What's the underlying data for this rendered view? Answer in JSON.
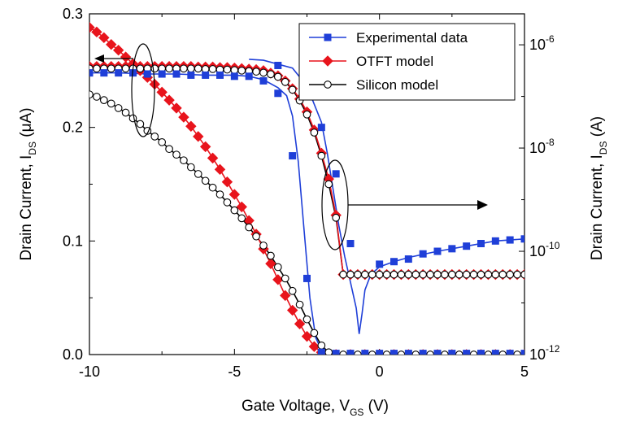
{
  "chart_data": {
    "type": "line",
    "xlabel": {
      "main": "Gate Voltage, V",
      "sub": "GS",
      "unit": "  (V)"
    },
    "ylabel_left": {
      "main": "Drain Current,  I",
      "sub": "DS",
      "unit": "   (μA)"
    },
    "ylabel_right": {
      "main": "Drain Current,  I",
      "sub": "DS",
      "unit": "   (A)"
    },
    "xlim": [
      -10,
      5
    ],
    "ylim_left": [
      0,
      0.3
    ],
    "ylim_right_log10": [
      -12,
      -5.4
    ],
    "x_ticks": [
      {
        "v": -10,
        "label": "-10"
      },
      {
        "v": -5,
        "label": "-5"
      },
      {
        "v": 0,
        "label": "0"
      },
      {
        "v": 5,
        "label": "5"
      }
    ],
    "y_left_ticks": [
      {
        "v": 0.0,
        "label": "0.0"
      },
      {
        "v": 0.1,
        "label": "0.1"
      },
      {
        "v": 0.2,
        "label": "0.2"
      },
      {
        "v": 0.3,
        "label": "0.3"
      }
    ],
    "y_right_ticks": [
      {
        "exp": -12,
        "base": "10",
        "sup": "-12"
      },
      {
        "exp": -10,
        "base": "10",
        "sup": "-10"
      },
      {
        "exp": -8,
        "base": "10",
        "sup": "-8"
      },
      {
        "exp": -6,
        "base": "10",
        "sup": "-6"
      }
    ],
    "legend_position": "top-right",
    "series": [
      {
        "name": "Experimental data",
        "color": "#1f3fd8",
        "marker": "square",
        "linear": {
          "line_x": [
            -10,
            -9,
            -8,
            -7,
            -6,
            -5,
            -4.5,
            -4,
            -3.5,
            -3.2,
            -3.0,
            -2.8,
            -2.6,
            -2.4,
            -2.2,
            -2.0,
            -1.8,
            -1.6,
            0,
            2,
            5
          ],
          "line_y": [
            0.248,
            0.248,
            0.247,
            0.247,
            0.246,
            0.246,
            0.245,
            0.242,
            0.235,
            0.228,
            0.21,
            0.17,
            0.11,
            0.05,
            0.015,
            0.004,
            0.002,
            0.001,
            0.001,
            0.001,
            0.001
          ],
          "marker_x": [
            -10,
            -9.5,
            -9,
            -8.5,
            -8,
            -7.5,
            -7,
            -6.5,
            -6,
            -5.5,
            -5,
            -4.5,
            -4,
            -3.5,
            -3,
            -2.5,
            -2,
            -1.5,
            -1,
            -0.5,
            0,
            0.5,
            1,
            1.5,
            2,
            2.5,
            3,
            3.5,
            4,
            4.5,
            5
          ],
          "marker_y": [
            0.248,
            0.248,
            0.248,
            0.248,
            0.247,
            0.247,
            0.247,
            0.246,
            0.246,
            0.246,
            0.245,
            0.245,
            0.241,
            0.23,
            0.175,
            0.067,
            0.002,
            0.001,
            0.001,
            0.001,
            0.001,
            0.001,
            0.001,
            0.001,
            0.001,
            0.001,
            0.001,
            0.001,
            0.001,
            0.001,
            0.001
          ]
        },
        "log": {
          "line_x": [
            -4.5,
            -4,
            -3,
            -2.5,
            -2,
            -1.8,
            -1.6,
            -1.4,
            -1.2,
            -1,
            -0.8,
            -0.7,
            -0.6,
            -0.5,
            -0.3,
            0,
            0.5,
            1,
            2,
            3,
            4,
            5
          ],
          "line_y": [
            -6.28,
            -6.3,
            -6.45,
            -6.8,
            -7.5,
            -8.1,
            -8.8,
            -9.5,
            -10.1,
            -10.6,
            -11.1,
            -11.6,
            -11.2,
            -10.75,
            -10.45,
            -10.3,
            -10.2,
            -10.12,
            -10.0,
            -9.9,
            -9.8,
            -9.76
          ],
          "marker_x": [
            -3.5,
            -2.5,
            -2,
            -1.5,
            -1,
            0,
            0.5,
            1,
            1.5,
            2,
            2.5,
            3,
            3.5,
            4,
            4.5,
            5
          ],
          "marker_y": [
            -6.4,
            -6.9,
            -7.6,
            -8.5,
            -9.85,
            -10.25,
            -10.2,
            -10.15,
            -10.05,
            -10.0,
            -9.95,
            -9.9,
            -9.85,
            -9.8,
            -9.78,
            -9.76
          ]
        }
      },
      {
        "name": "OTFT model",
        "color": "#e8141c",
        "marker": "diamond",
        "linear": {
          "x": [
            -10,
            -9.75,
            -9.5,
            -9.25,
            -9,
            -8.75,
            -8.5,
            -8.25,
            -8,
            -7.75,
            -7.5,
            -7.25,
            -7,
            -6.75,
            -6.5,
            -6.25,
            -6,
            -5.75,
            -5.5,
            -5.25,
            -5,
            -4.75,
            -4.5,
            -4.25,
            -4,
            -3.75,
            -3.5,
            -3.25,
            -3,
            -2.75,
            -2.5,
            -2.25,
            -2,
            -1.75,
            -1.5,
            -1,
            -0.5,
            0,
            0.5,
            1,
            1.5,
            2,
            2.5,
            3,
            3.5,
            4,
            4.5,
            5
          ],
          "y": [
            0.288,
            0.284,
            0.279,
            0.273,
            0.268,
            0.262,
            0.256,
            0.25,
            0.244,
            0.238,
            0.231,
            0.224,
            0.217,
            0.209,
            0.201,
            0.192,
            0.183,
            0.173,
            0.163,
            0.152,
            0.141,
            0.13,
            0.118,
            0.106,
            0.093,
            0.08,
            0.066,
            0.052,
            0.039,
            0.027,
            0.016,
            0.007,
            0.002,
            0.0,
            0.0,
            0.0,
            0.0,
            0.0,
            0.0,
            0.0,
            0.0,
            0.0,
            0.0,
            0.0,
            0.0,
            0.0,
            0.0,
            0.0
          ]
        },
        "log": {
          "x": [
            -10,
            -9.75,
            -9.5,
            -9.25,
            -9,
            -8.75,
            -8.5,
            -8.25,
            -8,
            -7.75,
            -7.5,
            -7.25,
            -7,
            -6.75,
            -6.5,
            -6.25,
            -6,
            -5.75,
            -5.5,
            -5.25,
            -5,
            -4.75,
            -4.5,
            -4.25,
            -4,
            -3.75,
            -3.5,
            -3.25,
            -3,
            -2.75,
            -2.5,
            -2.25,
            -2,
            -1.75,
            -1.5,
            -1.25,
            -1,
            -0.75,
            -0.5,
            -0.25,
            0,
            0.25,
            0.5,
            0.75,
            1,
            1.25,
            1.5,
            1.75,
            2,
            2.25,
            2.5,
            2.75,
            3,
            3.25,
            3.5,
            3.75,
            4,
            4.25,
            4.5,
            4.75,
            5
          ],
          "y": [
            -6.42,
            -6.42,
            -6.42,
            -6.42,
            -6.42,
            -6.42,
            -6.42,
            -6.42,
            -6.42,
            -6.42,
            -6.42,
            -6.42,
            -6.42,
            -6.42,
            -6.42,
            -6.43,
            -6.43,
            -6.43,
            -6.44,
            -6.44,
            -6.45,
            -6.46,
            -6.47,
            -6.48,
            -6.5,
            -6.55,
            -6.6,
            -6.7,
            -6.85,
            -7.05,
            -7.3,
            -7.65,
            -8.1,
            -8.6,
            -9.3,
            -10.45,
            -10.45,
            -10.45,
            -10.45,
            -10.45,
            -10.45,
            -10.45,
            -10.45,
            -10.45,
            -10.45,
            -10.45,
            -10.45,
            -10.45,
            -10.45,
            -10.45,
            -10.45,
            -10.45,
            -10.45,
            -10.45,
            -10.45,
            -10.45,
            -10.45,
            -10.45,
            -10.45,
            -10.45,
            -10.45
          ]
        }
      },
      {
        "name": "Silicon model",
        "color": "#000000",
        "marker": "circle",
        "linear": {
          "x": [
            -10,
            -9.75,
            -9.5,
            -9.25,
            -9,
            -8.75,
            -8.5,
            -8.25,
            -8,
            -7.75,
            -7.5,
            -7.25,
            -7,
            -6.75,
            -6.5,
            -6.25,
            -6,
            -5.75,
            -5.5,
            -5.25,
            -5,
            -4.75,
            -4.5,
            -4.25,
            -4,
            -3.75,
            -3.5,
            -3.25,
            -3,
            -2.75,
            -2.5,
            -2.25,
            -2,
            -1.75,
            -1.5,
            -1.25,
            -1,
            -0.75,
            -0.5,
            -0.25,
            0,
            0.25,
            0.5,
            0.75,
            1,
            1.25,
            1.5,
            1.75,
            2,
            2.25,
            2.5,
            2.75,
            3,
            3.25,
            3.5,
            3.75,
            4,
            4.25,
            4.5,
            4.75,
            5
          ],
          "y": [
            0.229,
            0.227,
            0.224,
            0.221,
            0.217,
            0.213,
            0.208,
            0.203,
            0.197,
            0.192,
            0.187,
            0.181,
            0.176,
            0.171,
            0.165,
            0.159,
            0.153,
            0.147,
            0.141,
            0.134,
            0.127,
            0.12,
            0.112,
            0.104,
            0.096,
            0.087,
            0.077,
            0.067,
            0.056,
            0.044,
            0.031,
            0.019,
            0.008,
            0.002,
            0.0,
            0.0,
            0.0,
            0.0,
            0.0,
            0.0,
            0.0,
            0.0,
            0.0,
            0.0,
            0.0,
            0.0,
            0.0,
            0.0,
            0.0,
            0.0,
            0.0,
            0.0,
            0.0,
            0.0,
            0.0,
            0.0,
            0.0,
            0.0,
            0.0,
            0.0,
            0.0
          ]
        },
        "log": {
          "x": [
            -10,
            -9.75,
            -9.5,
            -9.25,
            -9,
            -8.75,
            -8.5,
            -8.25,
            -8,
            -7.75,
            -7.5,
            -7.25,
            -7,
            -6.75,
            -6.5,
            -6.25,
            -6,
            -5.75,
            -5.5,
            -5.25,
            -5,
            -4.75,
            -4.5,
            -4.25,
            -4,
            -3.75,
            -3.5,
            -3.25,
            -3,
            -2.75,
            -2.5,
            -2.25,
            -2,
            -1.75,
            -1.5,
            -1.25,
            -1,
            -0.75,
            -0.5,
            -0.25,
            0,
            0.25,
            0.5,
            0.75,
            1,
            1.25,
            1.5,
            1.75,
            2,
            2.25,
            2.5,
            2.75,
            3,
            3.25,
            3.5,
            3.75,
            4,
            4.25,
            4.5,
            4.75,
            5
          ],
          "y": [
            -6.46,
            -6.46,
            -6.46,
            -6.46,
            -6.46,
            -6.46,
            -6.46,
            -6.46,
            -6.46,
            -6.46,
            -6.46,
            -6.46,
            -6.46,
            -6.46,
            -6.46,
            -6.46,
            -6.47,
            -6.47,
            -6.48,
            -6.48,
            -6.49,
            -6.5,
            -6.51,
            -6.52,
            -6.54,
            -6.57,
            -6.62,
            -6.72,
            -6.87,
            -7.08,
            -7.35,
            -7.7,
            -8.15,
            -8.7,
            -9.35,
            -10.45,
            -10.45,
            -10.45,
            -10.45,
            -10.45,
            -10.45,
            -10.45,
            -10.45,
            -10.45,
            -10.45,
            -10.45,
            -10.45,
            -10.45,
            -10.45,
            -10.45,
            -10.45,
            -10.45,
            -10.45,
            -10.45,
            -10.45,
            -10.45,
            -10.45,
            -10.45,
            -10.45,
            -10.45,
            -10.45
          ]
        }
      }
    ]
  }
}
